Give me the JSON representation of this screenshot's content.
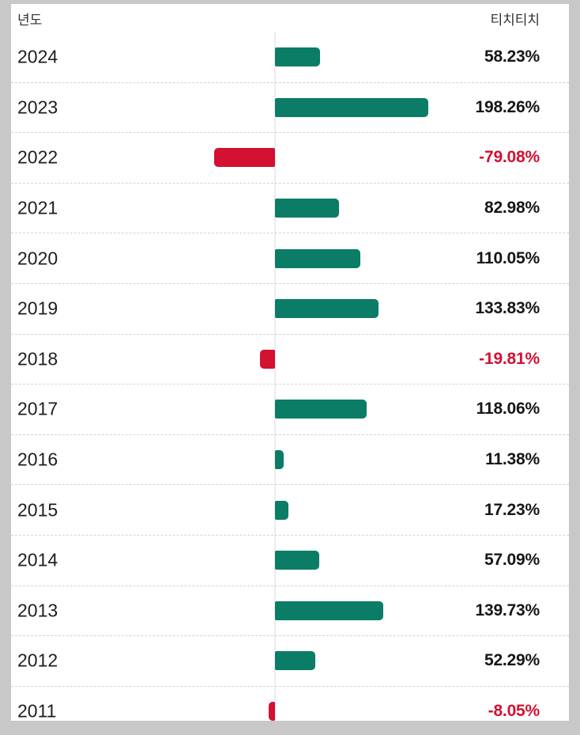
{
  "page": {
    "background": "#c8c8c8",
    "panel_background": "#ffffff"
  },
  "header": {
    "left_label": "년도",
    "right_label": "티치티치"
  },
  "colors": {
    "positive_bar": "#0b7d66",
    "negative_bar": "#d31132",
    "positive_value_text": "#161616",
    "negative_value_text": "#d31132",
    "year_text": "#1e1e1e",
    "header_text": "#2f2f2f",
    "divider": "#d4d4d4",
    "zero_line": "#ececec"
  },
  "chart_data": {
    "type": "bar",
    "orientation": "horizontal",
    "title": "티치티치",
    "xlabel": "년도",
    "categories": [
      "2024",
      "2023",
      "2022",
      "2021",
      "2020",
      "2019",
      "2018",
      "2017",
      "2016",
      "2015",
      "2014",
      "2013",
      "2012",
      "2011"
    ],
    "values": [
      58.23,
      198.26,
      -79.08,
      82.98,
      110.05,
      133.83,
      -19.81,
      118.06,
      11.38,
      17.23,
      57.09,
      139.73,
      52.29,
      -8.05
    ],
    "value_labels": [
      "58.23%",
      "198.26%",
      "-79.08%",
      "82.98%",
      "110.05%",
      "133.83%",
      "-19.81%",
      "118.06%",
      "11.38%",
      "17.23%",
      "57.09%",
      "139.73%",
      "52.29%",
      "-8.05%"
    ],
    "value_suffix": "%",
    "grid": "dashed-row-dividers",
    "legend_position": "none",
    "value_axis_range": [
      -100,
      210
    ]
  }
}
